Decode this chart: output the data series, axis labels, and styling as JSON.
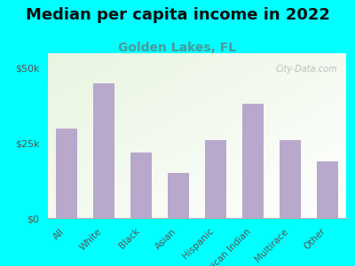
{
  "title": "Median per capita income in 2022",
  "subtitle": "Golden Lakes, FL",
  "categories": [
    "All",
    "White",
    "Black",
    "Asian",
    "Hispanic",
    "American Indian",
    "Multirace",
    "Other"
  ],
  "values": [
    30000,
    45000,
    22000,
    15000,
    26000,
    38000,
    26000,
    19000
  ],
  "bar_color": "#b8a8cc",
  "background_color": "#00FFFF",
  "title_fontsize": 13,
  "title_color": "#111111",
  "subtitle_fontsize": 10,
  "subtitle_color": "#4a9a9a",
  "yticks": [
    0,
    25000,
    50000
  ],
  "ytick_labels": [
    "$0",
    "$25k",
    "$50k"
  ],
  "ylim": [
    0,
    55000
  ],
  "watermark": "City-Data.com"
}
